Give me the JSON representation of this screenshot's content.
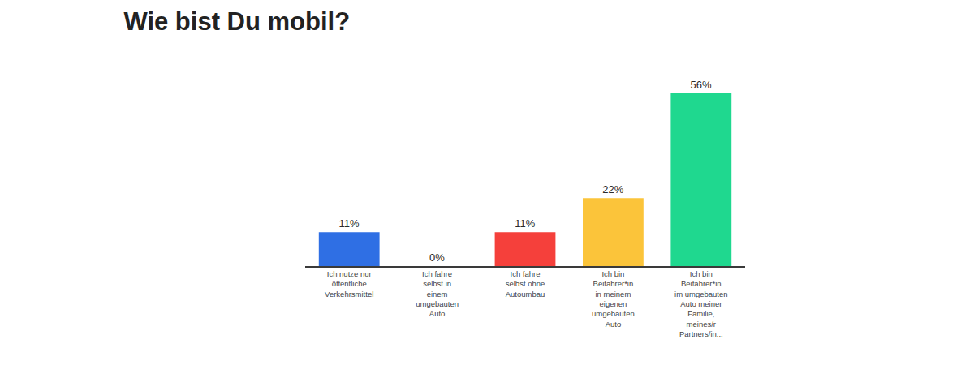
{
  "chart_data": {
    "type": "bar",
    "title": "Wie bist Du mobil?",
    "categories": [
      "Ich nutze nur öffentliche Verkehrsmittel",
      "Ich fahre selbst in einem umgebauten Auto",
      "Ich fahre selbst ohne Autoumbau",
      "Ich bin Beifahrer*in in meinem eigenen umgebauten Auto",
      "Ich bin Beifahrer*in im umgebauten Auto meiner Familie, meines/r Partners/in..."
    ],
    "values": [
      11,
      0,
      11,
      22,
      56
    ],
    "value_labels": [
      "11%",
      "0%",
      "11%",
      "22%",
      "56%"
    ],
    "colors": [
      "#2f6fe4",
      "#2f6fe4",
      "#f5403b",
      "#fbc43a",
      "#1fd88f"
    ],
    "ylim": [
      0,
      56
    ],
    "grid": false,
    "data_labels": true,
    "tick_labels": "x"
  }
}
